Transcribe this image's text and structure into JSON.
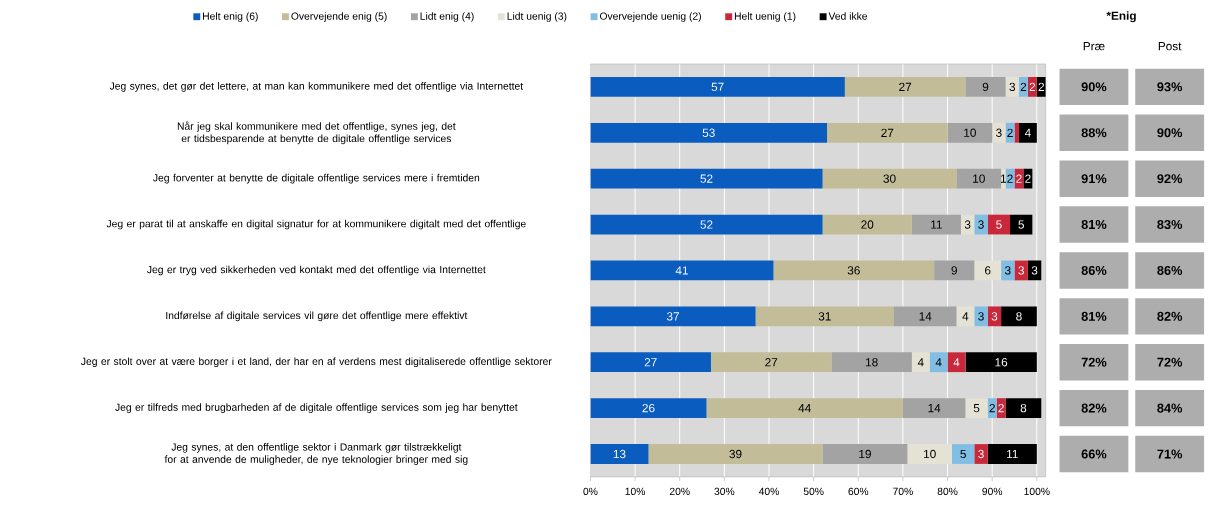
{
  "chart_data": [
    {
      "type": "bar",
      "orientation": "horizontal",
      "stacked": true,
      "grid": "x",
      "legend": "top",
      "categories": [
        "Jeg synes, det gør det lettere, at man kan kommunikere med det offentlige via Internettet",
        "Når jeg skal kommunikere med det offentlige, synes jeg, det er tidsbesparende at benytte de digitale offentlige services",
        "Jeg forventer at benytte de digitale offentlige services mere i fremtiden",
        "Jeg er parat til at anskaffe en digital signatur for at kommunikere digitalt med det offentlige",
        "Jeg er tryg ved sikkerheden ved kontakt med det offentlige via Internettet",
        "Indførelse af digitale services vil gøre det offentlige mere effektivt",
        "Jeg er stolt over at være borger i et land, der har en af verdens mest digitaliserede offentlige sektorer",
        "Jeg er tilfreds med brugbarheden af de digitale offentlige services som jeg har benyttet",
        "Jeg synes, at den offentlige sektor i Danmark gør tilstrækkeligt for at anvende de muligheder, de nye teknologier bringer med sig"
      ],
      "xlim": [
        0,
        102
      ],
      "xticks": [
        {
          "value": 0,
          "label": "0%"
        },
        {
          "value": 10,
          "label": "10%"
        },
        {
          "value": 20,
          "label": "20%"
        },
        {
          "value": 30,
          "label": "30%"
        },
        {
          "value": 40,
          "label": "40%"
        },
        {
          "value": 50,
          "label": "50%"
        },
        {
          "value": 60,
          "label": "60%"
        },
        {
          "value": 70,
          "label": "70%"
        },
        {
          "value": 80,
          "label": "80%"
        },
        {
          "value": 90,
          "label": "90%"
        },
        {
          "value": 100,
          "label": "100%"
        }
      ],
      "series": [
        {
          "name": "Helt enig (6)",
          "color": "#0a5cbe",
          "values": [
            57,
            53,
            52,
            52,
            41,
            37,
            27,
            26,
            13
          ],
          "value_labels": [
            "57",
            "53",
            "52",
            "52",
            "41",
            "37",
            "27",
            "26",
            "13"
          ]
        },
        {
          "name": "Overvejende enig (5)",
          "color": "#c2bc98",
          "values": [
            27,
            27,
            30,
            20,
            36,
            31,
            27,
            44,
            39
          ],
          "value_labels": [
            "27",
            "27",
            "30",
            "20",
            "36",
            "31",
            "27",
            "44",
            "39"
          ]
        },
        {
          "name": "Lidt enig (4)",
          "color": "#a3a3a3",
          "values": [
            9,
            10,
            10,
            11,
            9,
            14,
            18,
            14,
            19
          ],
          "value_labels": [
            "9",
            "10",
            "10",
            "11",
            "9",
            "14",
            "18",
            "14",
            "19"
          ]
        },
        {
          "name": "Lidt uenig (3)",
          "color": "#e4e2d4",
          "values": [
            3,
            3,
            1,
            3,
            6,
            4,
            4,
            5,
            10
          ],
          "value_labels": [
            "3",
            "3",
            "1",
            "3",
            "6",
            "4",
            "4",
            "5",
            "10"
          ]
        },
        {
          "name": "Overvejende uenig (2)",
          "color": "#82bde4",
          "values": [
            2,
            2,
            2,
            3,
            3,
            3,
            4,
            2,
            5
          ],
          "value_labels": [
            "2",
            "2",
            "2",
            "3",
            "3",
            "3",
            "4",
            "2",
            "5"
          ]
        },
        {
          "name": "Helt uenig (1)",
          "color": "#c8283a",
          "values": [
            2,
            1,
            2,
            5,
            3,
            3,
            4,
            2,
            3
          ],
          "value_labels": [
            "2",
            null,
            "2",
            "5",
            "3",
            "3",
            "4",
            "2",
            "3"
          ]
        },
        {
          "name": "Ved ikke",
          "color": "#000000",
          "values": [
            2,
            4,
            2,
            5,
            3,
            8,
            16,
            8,
            11
          ],
          "value_labels": [
            "2",
            "4",
            "2",
            "5",
            "3",
            "8",
            "16",
            "8",
            "11"
          ]
        }
      ]
    },
    {
      "type": "other",
      "title": "*Enig",
      "categories": [
        "Præ",
        "Post"
      ],
      "annotations": [
        "90%",
        "93%",
        "88%",
        "90%",
        "91%",
        "92%",
        "81%",
        "83%",
        "86%",
        "86%",
        "81%",
        "82%",
        "72%",
        "72%",
        "82%",
        "84%",
        "66%",
        "71%"
      ]
    }
  ]
}
